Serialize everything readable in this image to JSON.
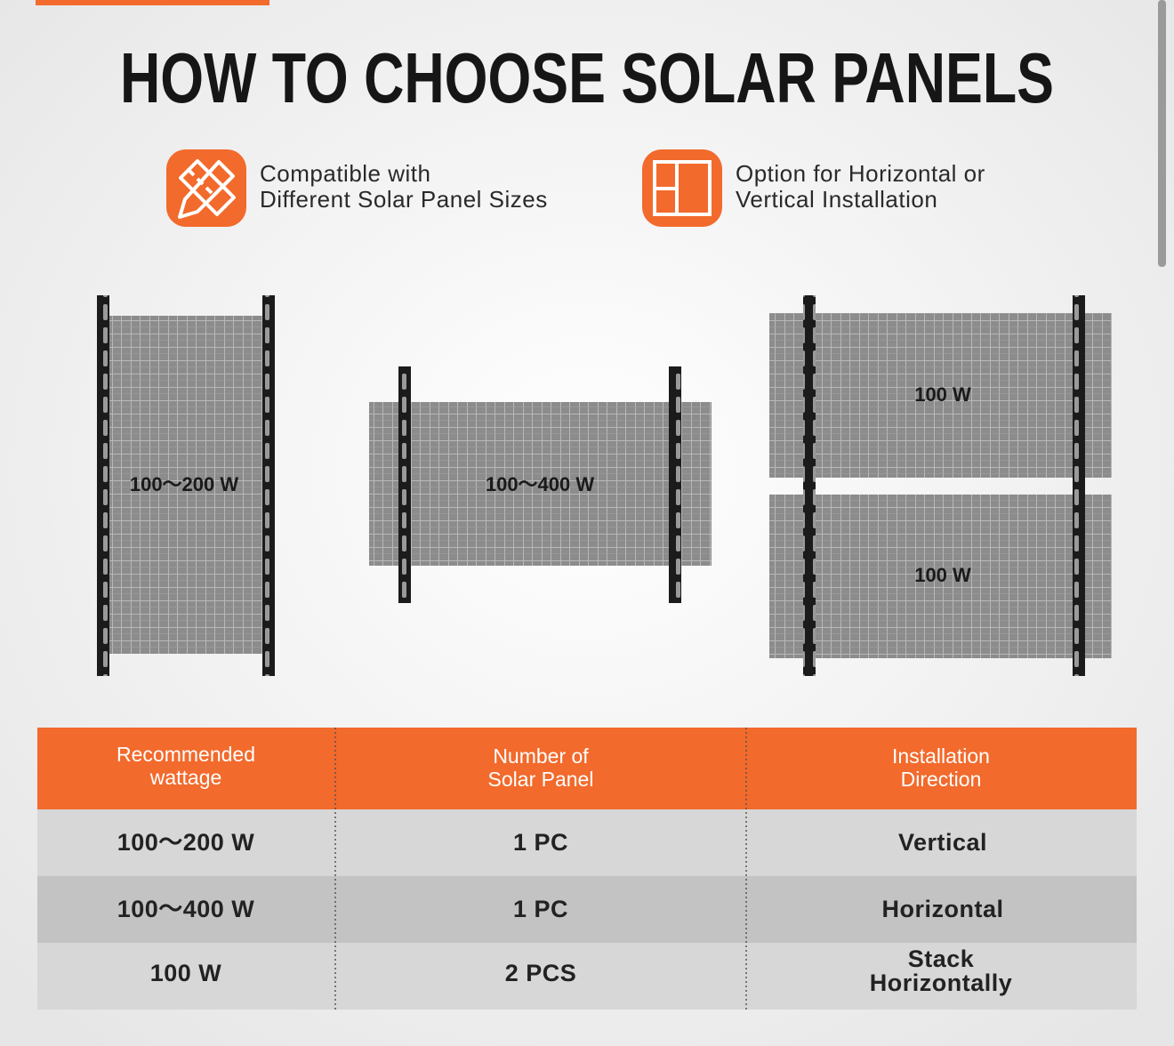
{
  "header": {
    "title": "HOW TO CHOOSE SOLAR PANELS"
  },
  "features": [
    {
      "lines": [
        "Compatible with",
        "Different Solar Panel Sizes"
      ]
    },
    {
      "lines": [
        "Option for Horizontal or",
        "Vertical Installation"
      ]
    }
  ],
  "panels": [
    {
      "label": "100～200 W"
    },
    {
      "label": "100～400 W"
    },
    {
      "label": "100 W"
    },
    {
      "label": "100 W"
    }
  ],
  "table": {
    "headers": [
      [
        "Recommended",
        "wattage"
      ],
      [
        "Number of",
        "Solar Panel"
      ],
      [
        "Installation",
        "Direction"
      ]
    ],
    "rows": [
      [
        "100～200 W",
        "1 PC",
        "Vertical"
      ],
      [
        "100～400 W",
        "1 PC",
        "Horizontal"
      ],
      [
        "100 W",
        "2 PCS",
        [
          "Stack",
          "Horizontally"
        ]
      ]
    ]
  }
}
